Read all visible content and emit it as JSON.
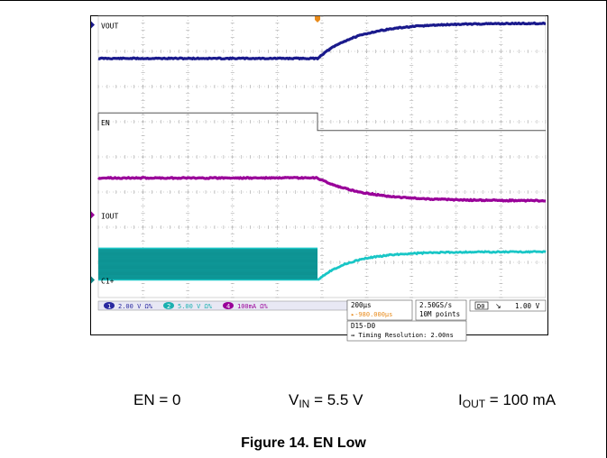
{
  "chart_data": {
    "type": "line",
    "title": "",
    "time_per_div_us": 200,
    "divisions_x": 10,
    "divisions_y": 8,
    "x_range_us": [
      -980,
      1020
    ],
    "trigger_time_us": 0,
    "trigger_offset_readout": "-980.000µs",
    "series": [
      {
        "name": "VOUT",
        "channel": "1",
        "color": "#1a1a8c",
        "scale": "2.00 V",
        "coupling": "Ω%",
        "behavior": "low before EN falls, then rises exponentially",
        "level_before_div": 6.8,
        "level_final_div": 7.8,
        "tau_us": 180
      },
      {
        "name": "EN",
        "channel": "D0",
        "color": "#555555",
        "behavior": "digital high, falls to low at trigger",
        "level_before_div": 5.25,
        "level_final_div": 4.75
      },
      {
        "name": "IOUT",
        "channel": "4",
        "color": "#990099",
        "scale": "100mA",
        "coupling": "Ω%",
        "behavior": "steady then decays",
        "level_before_div": 3.4,
        "level_final_div": 2.75,
        "tau_us": 200
      },
      {
        "name": "C1+",
        "channel": "2",
        "color": "#19c6c6",
        "scale": "5.00 V",
        "coupling": "Ω%",
        "behavior": "switching band before trigger, then rises exponentially",
        "band_top_div": 1.4,
        "band_bottom_div": 0.5,
        "level_after_start_div": 0.5,
        "level_final_div": 1.3,
        "tau_us": 150
      }
    ],
    "channel_labels": [
      "VOUT",
      "EN",
      "IOUT",
      "C1+"
    ],
    "status_bar": {
      "ch1": "2.00 V Ω%",
      "ch2": "5.00 V Ω%",
      "ch4": "100mA Ω%",
      "timebase": "200µs",
      "offset": "-980.000µs",
      "sample_rate": "2.50GS/s",
      "record_length": "10M points",
      "trigger_source": "D0",
      "trigger_slope": "↘",
      "trigger_level": "1.00 V",
      "digital_bus": "D15-D0",
      "timing_resolution": "Timing Resolution: 2.00ns"
    }
  },
  "conditions": {
    "en": "EN = 0",
    "vin_main": "V",
    "vin_sub": "IN",
    "vin_value": " = 5.5 V",
    "iout_main": "I",
    "iout_sub": "OUT",
    "iout_value": " = 100 mA"
  },
  "caption": "Figure 14. EN Low"
}
